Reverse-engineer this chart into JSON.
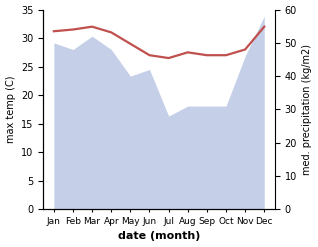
{
  "months": [
    "Jan",
    "Feb",
    "Mar",
    "Apr",
    "May",
    "Jun",
    "Jul",
    "Aug",
    "Sep",
    "Oct",
    "Nov",
    "Dec"
  ],
  "temperature": [
    31.2,
    31.5,
    32.0,
    31.0,
    29.0,
    27.0,
    26.5,
    27.5,
    27.0,
    27.0,
    28.0,
    32.0
  ],
  "precipitation": [
    50,
    48,
    52,
    48,
    40,
    42,
    28,
    31,
    31,
    31,
    46,
    58
  ],
  "temp_color": "#c0504d",
  "precip_color": "#c5cfe8",
  "temp_ylim": [
    0,
    35
  ],
  "precip_ylim": [
    0,
    60
  ],
  "temp_yticks": [
    0,
    5,
    10,
    15,
    20,
    25,
    30,
    35
  ],
  "precip_yticks": [
    0,
    10,
    20,
    30,
    40,
    50,
    60
  ],
  "ylabel_left": "max temp (C)",
  "ylabel_right": "med. precipitation (kg/m2)",
  "xlabel": "date (month)",
  "background_color": "#ffffff",
  "linewidth": 1.8,
  "temp_linewidth": 1.6
}
